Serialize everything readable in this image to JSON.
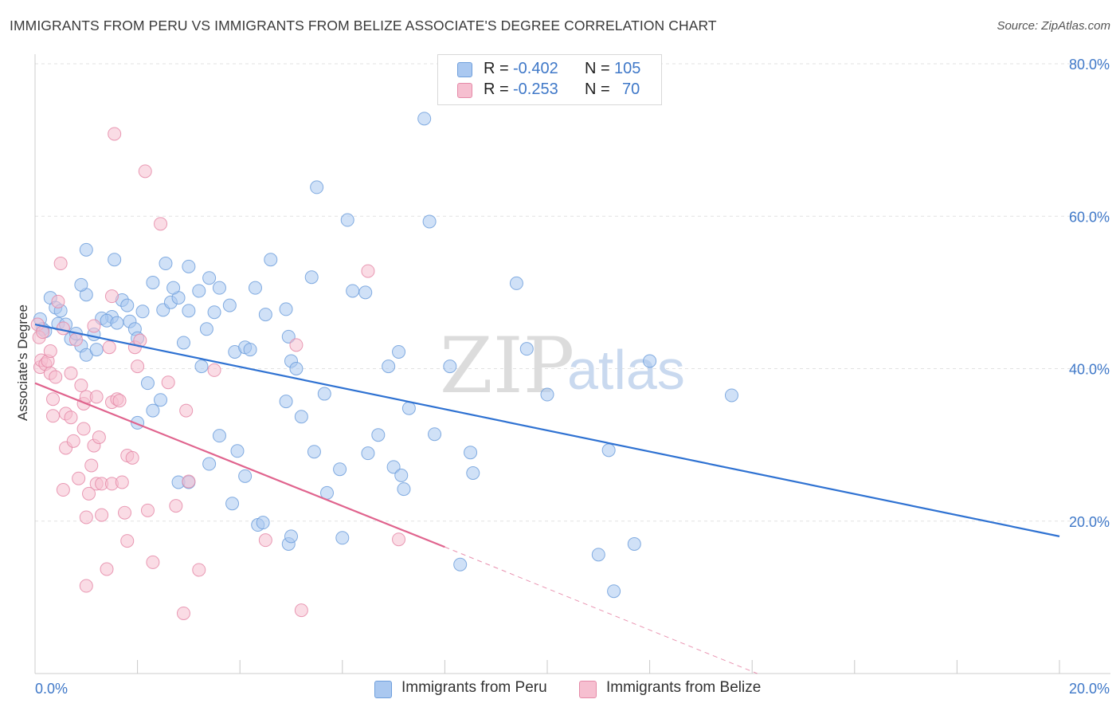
{
  "title": "IMMIGRANTS FROM PERU VS IMMIGRANTS FROM BELIZE ASSOCIATE'S DEGREE CORRELATION CHART",
  "source": "Source: ZipAtlas.com",
  "watermark": {
    "zip": "ZIP",
    "atlas": "atlas"
  },
  "colors": {
    "peru_fill": "#aac8f0",
    "peru_stroke": "#6f9fdc",
    "peru_line": "#2f72d2",
    "belize_fill": "#f6bfd0",
    "belize_stroke": "#e58aa8",
    "belize_line": "#e0648e",
    "grid": "#e2e2e2",
    "axis_text": "#3f78c8"
  },
  "stats": [
    {
      "r_label": "R =",
      "r_value": "-0.402",
      "n_label": "N =",
      "n_value": "105",
      "color": "#aac8f0"
    },
    {
      "r_label": "R =",
      "r_value": "-0.253",
      "n_label": "N =",
      "n_value": "70",
      "color": "#f6bfd0"
    }
  ],
  "legend": [
    {
      "label": "Immigrants from Peru",
      "color": "#aac8f0"
    },
    {
      "label": "Immigrants from Belize",
      "color": "#f6bfd0"
    }
  ],
  "chart_data": {
    "type": "scatter",
    "ylabel": "Associate's Degree",
    "xlim": [
      0,
      20
    ],
    "ylim": [
      0,
      80
    ],
    "x_tick_labels": [
      {
        "value": 0,
        "label": "0.0%"
      },
      {
        "value": 20,
        "label": "20.0%"
      }
    ],
    "y_tick_labels": [
      {
        "value": 20,
        "label": "20.0%"
      },
      {
        "value": 40,
        "label": "40.0%"
      },
      {
        "value": 60,
        "label": "60.0%"
      },
      {
        "value": 80,
        "label": "80.0%"
      }
    ],
    "x_minor_ticks": [
      2,
      4,
      6,
      8,
      10,
      12,
      14,
      16,
      18,
      20
    ],
    "grid": true,
    "series": [
      {
        "name": "Immigrants from Peru",
        "trend": {
          "x": [
            0,
            20
          ],
          "y": [
            45.8,
            18.0
          ],
          "dashed_from": null
        },
        "points": [
          [
            0.1,
            46.5
          ],
          [
            0.15,
            45.2
          ],
          [
            0.2,
            44.9
          ],
          [
            0.3,
            49.3
          ],
          [
            0.4,
            48.0
          ],
          [
            0.5,
            47.6
          ],
          [
            0.45,
            45.9
          ],
          [
            0.6,
            45.8
          ],
          [
            0.7,
            43.9
          ],
          [
            0.8,
            44.6
          ],
          [
            0.9,
            43.0
          ],
          [
            1.0,
            41.8
          ],
          [
            1.15,
            44.5
          ],
          [
            1.0,
            49.7
          ],
          [
            0.9,
            51.0
          ],
          [
            1.0,
            55.6
          ],
          [
            1.55,
            54.3
          ],
          [
            1.7,
            49.0
          ],
          [
            1.8,
            48.3
          ],
          [
            1.85,
            46.2
          ],
          [
            1.5,
            46.8
          ],
          [
            1.3,
            46.6
          ],
          [
            1.4,
            46.3
          ],
          [
            1.6,
            46.0
          ],
          [
            1.95,
            45.2
          ],
          [
            2.0,
            44.0
          ],
          [
            2.1,
            47.5
          ],
          [
            2.2,
            38.1
          ],
          [
            2.3,
            51.3
          ],
          [
            2.5,
            47.7
          ],
          [
            2.55,
            53.8
          ],
          [
            2.65,
            48.7
          ],
          [
            2.8,
            49.3
          ],
          [
            2.9,
            43.4
          ],
          [
            3.0,
            53.4
          ],
          [
            3.0,
            47.6
          ],
          [
            3.2,
            50.2
          ],
          [
            3.25,
            40.3
          ],
          [
            3.35,
            45.2
          ],
          [
            3.4,
            51.9
          ],
          [
            3.5,
            47.4
          ],
          [
            3.6,
            50.6
          ],
          [
            3.8,
            48.3
          ],
          [
            3.9,
            42.2
          ],
          [
            4.1,
            42.8
          ],
          [
            4.3,
            50.6
          ],
          [
            4.5,
            47.1
          ],
          [
            4.6,
            54.3
          ],
          [
            4.9,
            47.8
          ],
          [
            5.0,
            41.0
          ],
          [
            5.1,
            40.0
          ],
          [
            5.2,
            33.7
          ],
          [
            4.9,
            35.7
          ],
          [
            5.4,
            52.0
          ],
          [
            5.5,
            63.8
          ],
          [
            5.65,
            36.7
          ],
          [
            5.45,
            29.1
          ],
          [
            5.7,
            23.7
          ],
          [
            5.95,
            26.8
          ],
          [
            6.0,
            17.8
          ],
          [
            6.1,
            59.5
          ],
          [
            6.2,
            50.2
          ],
          [
            6.45,
            50.0
          ],
          [
            6.5,
            28.9
          ],
          [
            6.7,
            31.3
          ],
          [
            6.9,
            40.3
          ],
          [
            7.0,
            27.1
          ],
          [
            7.1,
            42.2
          ],
          [
            7.15,
            26.0
          ],
          [
            7.2,
            24.2
          ],
          [
            7.3,
            34.8
          ],
          [
            7.6,
            72.8
          ],
          [
            7.7,
            59.3
          ],
          [
            7.8,
            31.4
          ],
          [
            8.1,
            40.3
          ],
          [
            8.3,
            14.3
          ],
          [
            8.5,
            29.0
          ],
          [
            8.55,
            26.3
          ],
          [
            9.4,
            51.2
          ],
          [
            9.6,
            42.6
          ],
          [
            10.0,
            36.6
          ],
          [
            11.0,
            15.6
          ],
          [
            11.7,
            17.0
          ],
          [
            11.3,
            10.8
          ],
          [
            12.0,
            41.0
          ],
          [
            13.6,
            36.5
          ],
          [
            11.2,
            29.3
          ],
          [
            2.45,
            35.9
          ],
          [
            2.0,
            32.9
          ],
          [
            2.3,
            34.5
          ],
          [
            2.8,
            25.1
          ],
          [
            3.0,
            25.1
          ],
          [
            3.4,
            27.5
          ],
          [
            3.6,
            31.2
          ],
          [
            3.95,
            29.2
          ],
          [
            4.1,
            25.9
          ],
          [
            3.85,
            22.3
          ],
          [
            4.35,
            19.5
          ],
          [
            4.45,
            19.8
          ],
          [
            4.95,
            17.0
          ],
          [
            5.0,
            18.0
          ],
          [
            4.2,
            42.5
          ],
          [
            4.95,
            44.2
          ],
          [
            1.2,
            42.5
          ],
          [
            2.7,
            50.6
          ]
        ]
      },
      {
        "name": "Immigrants from Belize",
        "trend": {
          "x": [
            0,
            8.0
          ],
          "y": [
            38.1,
            16.6
          ],
          "dashed_to": {
            "x": 14.1,
            "y": 0
          }
        },
        "points": [
          [
            0.05,
            45.8
          ],
          [
            0.08,
            44.1
          ],
          [
            0.1,
            40.2
          ],
          [
            0.12,
            41.1
          ],
          [
            0.15,
            44.8
          ],
          [
            0.2,
            40.6
          ],
          [
            0.25,
            41.0
          ],
          [
            0.3,
            42.3
          ],
          [
            0.3,
            39.4
          ],
          [
            0.35,
            33.8
          ],
          [
            0.35,
            36.0
          ],
          [
            0.4,
            38.9
          ],
          [
            0.45,
            48.8
          ],
          [
            0.5,
            53.8
          ],
          [
            0.55,
            45.3
          ],
          [
            0.55,
            24.1
          ],
          [
            0.6,
            29.6
          ],
          [
            0.6,
            34.1
          ],
          [
            0.7,
            33.6
          ],
          [
            0.7,
            39.4
          ],
          [
            0.75,
            30.5
          ],
          [
            0.8,
            43.8
          ],
          [
            0.85,
            25.6
          ],
          [
            0.9,
            37.8
          ],
          [
            0.95,
            35.4
          ],
          [
            0.95,
            32.1
          ],
          [
            1.0,
            20.5
          ],
          [
            1.0,
            11.5
          ],
          [
            1.05,
            23.6
          ],
          [
            1.0,
            36.3
          ],
          [
            1.1,
            27.3
          ],
          [
            1.15,
            29.9
          ],
          [
            1.15,
            45.6
          ],
          [
            1.2,
            24.9
          ],
          [
            1.2,
            36.3
          ],
          [
            1.25,
            31.0
          ],
          [
            1.3,
            20.8
          ],
          [
            1.3,
            24.9
          ],
          [
            1.4,
            13.7
          ],
          [
            1.5,
            35.6
          ],
          [
            1.5,
            24.9
          ],
          [
            1.45,
            42.8
          ],
          [
            1.5,
            49.5
          ],
          [
            1.55,
            70.8
          ],
          [
            1.6,
            36.0
          ],
          [
            1.65,
            35.8
          ],
          [
            1.7,
            25.1
          ],
          [
            1.75,
            21.1
          ],
          [
            1.8,
            28.6
          ],
          [
            1.8,
            17.4
          ],
          [
            1.9,
            28.3
          ],
          [
            1.95,
            42.8
          ],
          [
            2.0,
            40.3
          ],
          [
            2.05,
            43.7
          ],
          [
            2.15,
            65.9
          ],
          [
            2.2,
            21.4
          ],
          [
            2.3,
            14.6
          ],
          [
            2.45,
            59.0
          ],
          [
            2.6,
            38.2
          ],
          [
            2.75,
            22.0
          ],
          [
            2.9,
            7.9
          ],
          [
            2.95,
            34.5
          ],
          [
            3.0,
            25.2
          ],
          [
            3.2,
            13.6
          ],
          [
            3.5,
            39.8
          ],
          [
            4.5,
            17.5
          ],
          [
            5.1,
            43.1
          ],
          [
            5.2,
            8.3
          ],
          [
            6.5,
            52.8
          ],
          [
            7.1,
            17.6
          ]
        ]
      }
    ]
  }
}
